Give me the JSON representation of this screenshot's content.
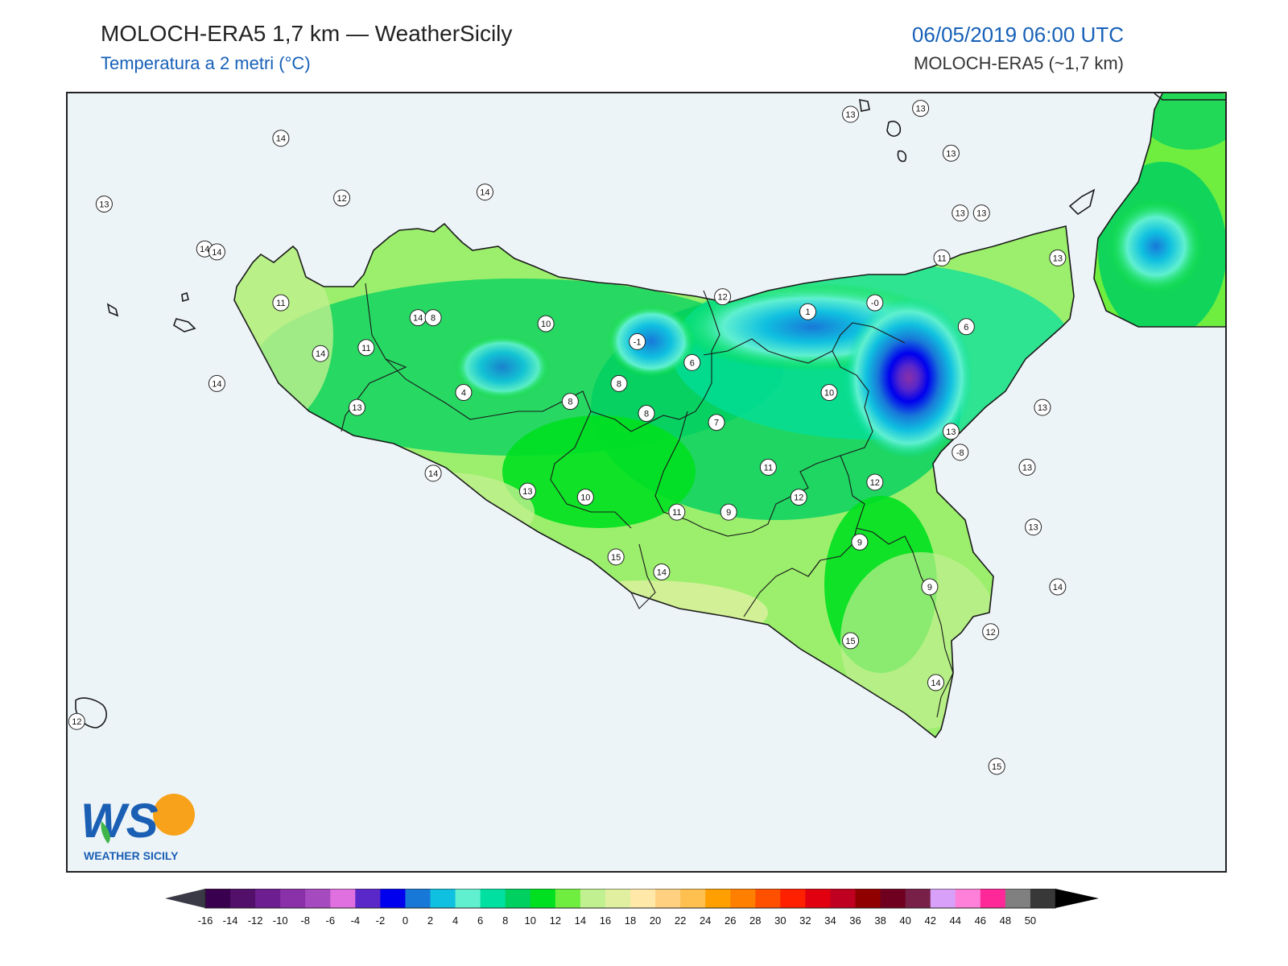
{
  "header": {
    "title": "MOLOCH-ERA5 1,7 km — WeatherSicily",
    "subtitle": "Temperatura a 2 metri (°C)",
    "datetime": "06/05/2019 06:00 UTC",
    "model": "MOLOCH-ERA5 (~1,7 km)"
  },
  "logo": {
    "letters": "WS",
    "text": "WEATHER SICILY"
  },
  "colors": {
    "sea": "#edf4f8",
    "coast": "#1a1a1a"
  },
  "colorbar": {
    "labels": [
      "-16",
      "-14",
      "-12",
      "-10",
      "-8",
      "-6",
      "-4",
      "-2",
      "0",
      "2",
      "4",
      "6",
      "8",
      "10",
      "12",
      "14",
      "16",
      "18",
      "20",
      "22",
      "24",
      "26",
      "28",
      "30",
      "32",
      "34",
      "36",
      "38",
      "40",
      "42",
      "44",
      "46",
      "48",
      "50"
    ],
    "colors": [
      "#3a0050",
      "#52106a",
      "#6d1e90",
      "#8a30a8",
      "#a64ac0",
      "#e070e0",
      "#5a28c8",
      "#0000ee",
      "#1878d8",
      "#10c0e0",
      "#60f0d0",
      "#00e0a0",
      "#00d060",
      "#00e020",
      "#70ee40",
      "#c0f090",
      "#e0f0a0",
      "#ffe8a8",
      "#ffd080",
      "#ffc050",
      "#ffa000",
      "#ff8000",
      "#ff5000",
      "#ff2000",
      "#e00010",
      "#c00020",
      "#900000",
      "#700020",
      "#782048",
      "#d8a0f8",
      "#ff80d8",
      "#ff2898",
      "#808080",
      "#383838"
    ],
    "under_color": "#3a3a46",
    "over_color": "#000000"
  },
  "stations": [
    {
      "label": "13",
      "lon": 12.17,
      "lat": 38.58
    },
    {
      "label": "14",
      "lon": 12.5,
      "lat": 38.43
    },
    {
      "label": "14",
      "lon": 12.75,
      "lat": 38.8
    },
    {
      "label": "14",
      "lon": 12.54,
      "lat": 38.42
    },
    {
      "label": "12",
      "lon": 12.95,
      "lat": 38.6
    },
    {
      "label": "11",
      "lon": 12.75,
      "lat": 38.25
    },
    {
      "label": "14",
      "lon": 12.54,
      "lat": 37.98
    },
    {
      "label": "14",
      "lon": 12.88,
      "lat": 38.08
    },
    {
      "label": "14",
      "lon": 13.2,
      "lat": 38.2
    },
    {
      "label": "14",
      "lon": 13.42,
      "lat": 38.62
    },
    {
      "label": "8",
      "lon": 13.25,
      "lat": 38.2
    },
    {
      "label": "11",
      "lon": 13.03,
      "lat": 38.1
    },
    {
      "label": "13",
      "lon": 13.0,
      "lat": 37.9
    },
    {
      "label": "10",
      "lon": 13.62,
      "lat": 38.18
    },
    {
      "label": "4",
      "lon": 13.35,
      "lat": 37.95
    },
    {
      "label": "8",
      "lon": 13.7,
      "lat": 37.92
    },
    {
      "label": "8",
      "lon": 13.86,
      "lat": 37.98
    },
    {
      "label": "-1",
      "lon": 13.92,
      "lat": 38.12
    },
    {
      "label": "6",
      "lon": 14.1,
      "lat": 38.05
    },
    {
      "label": "12",
      "lon": 14.2,
      "lat": 38.27
    },
    {
      "label": "8",
      "lon": 13.95,
      "lat": 37.88
    },
    {
      "label": "7",
      "lon": 14.18,
      "lat": 37.85
    },
    {
      "label": "14",
      "lon": 13.25,
      "lat": 37.68
    },
    {
      "label": "13",
      "lon": 13.56,
      "lat": 37.62
    },
    {
      "label": "10",
      "lon": 13.75,
      "lat": 37.6
    },
    {
      "label": "11",
      "lon": 14.05,
      "lat": 37.55
    },
    {
      "label": "15",
      "lon": 13.85,
      "lat": 37.4
    },
    {
      "label": "14",
      "lon": 14.0,
      "lat": 37.35
    },
    {
      "label": "9",
      "lon": 14.22,
      "lat": 37.55
    },
    {
      "label": "11",
      "lon": 14.35,
      "lat": 37.7
    },
    {
      "label": "12",
      "lon": 14.45,
      "lat": 37.6
    },
    {
      "label": "10",
      "lon": 14.55,
      "lat": 37.95
    },
    {
      "label": "1",
      "lon": 14.48,
      "lat": 38.22
    },
    {
      "label": "-0",
      "lon": 14.7,
      "lat": 38.25
    },
    {
      "label": "-8",
      "lon": 14.98,
      "lat": 37.75
    },
    {
      "label": "13",
      "lon": 14.95,
      "lat": 37.82
    },
    {
      "label": "6",
      "lon": 15.0,
      "lat": 38.17
    },
    {
      "label": "11",
      "lon": 14.92,
      "lat": 38.4
    },
    {
      "label": "13",
      "lon": 15.25,
      "lat": 37.9
    },
    {
      "label": "13",
      "lon": 15.2,
      "lat": 37.7
    },
    {
      "label": "13",
      "lon": 15.05,
      "lat": 38.55
    },
    {
      "label": "13",
      "lon": 15.3,
      "lat": 38.4
    },
    {
      "label": "13",
      "lon": 15.22,
      "lat": 37.5
    },
    {
      "label": "12",
      "lon": 14.7,
      "lat": 37.65
    },
    {
      "label": "9",
      "lon": 14.65,
      "lat": 37.45
    },
    {
      "label": "9",
      "lon": 14.88,
      "lat": 37.3
    },
    {
      "label": "14",
      "lon": 15.3,
      "lat": 37.3
    },
    {
      "label": "12",
      "lon": 15.08,
      "lat": 37.15
    },
    {
      "label": "15",
      "lon": 14.62,
      "lat": 37.12
    },
    {
      "label": "14",
      "lon": 14.9,
      "lat": 36.98
    },
    {
      "label": "15",
      "lon": 15.1,
      "lat": 36.7
    },
    {
      "label": "12",
      "lon": 12.08,
      "lat": 36.85
    },
    {
      "label": "13",
      "lon": 14.62,
      "lat": 38.88
    },
    {
      "label": "13",
      "lon": 14.85,
      "lat": 38.9
    },
    {
      "label": "13",
      "lon": 14.95,
      "lat": 38.75
    },
    {
      "label": "13",
      "lon": 14.98,
      "lat": 38.55
    }
  ]
}
